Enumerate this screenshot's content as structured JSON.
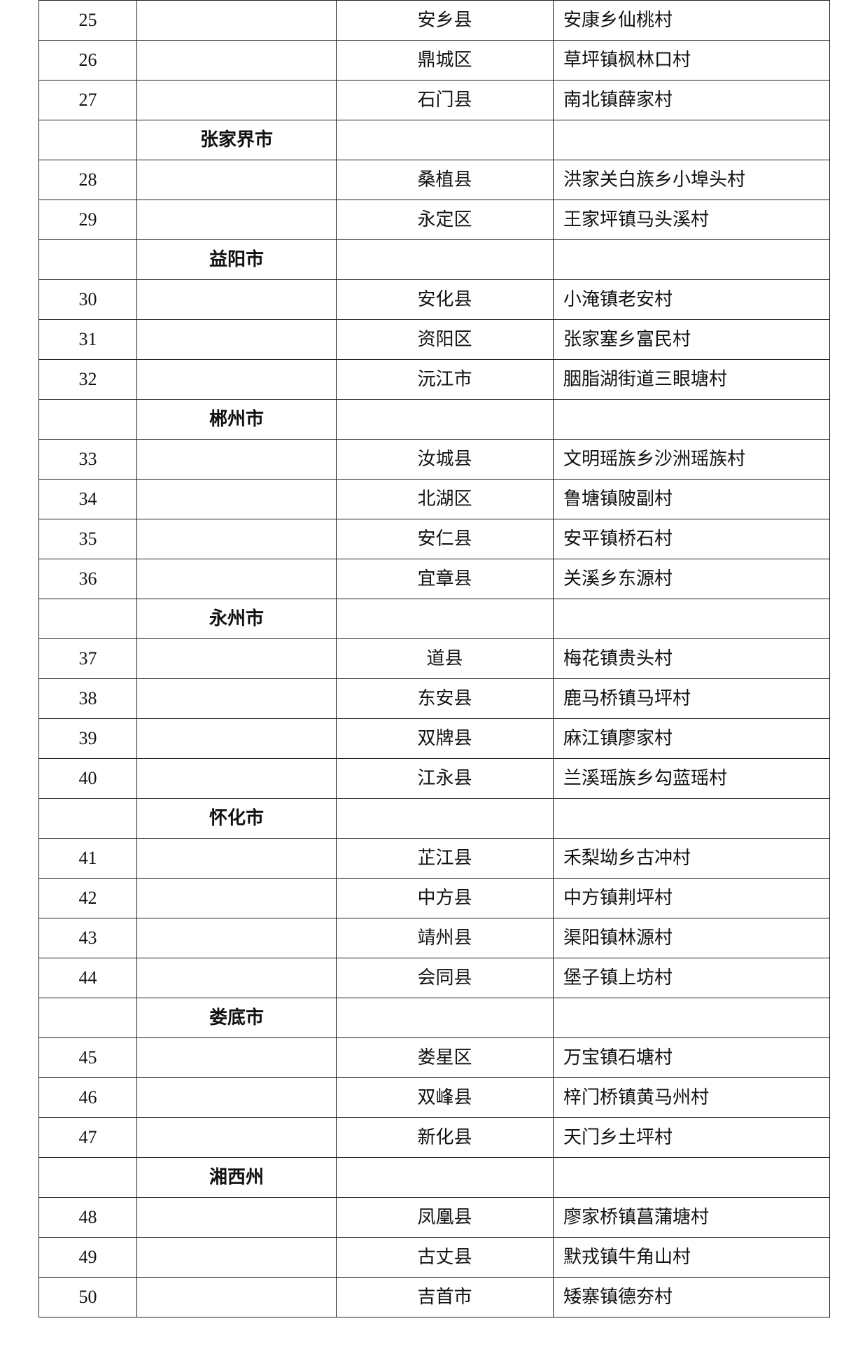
{
  "rows": [
    {
      "no": "25",
      "city": "",
      "district": "安乡县",
      "village": "安康乡仙桃村"
    },
    {
      "no": "26",
      "city": "",
      "district": "鼎城区",
      "village": "草坪镇枫林口村"
    },
    {
      "no": "27",
      "city": "",
      "district": "石门县",
      "village": "南北镇薛家村"
    },
    {
      "no": "",
      "city": "张家界市",
      "district": "",
      "village": ""
    },
    {
      "no": "28",
      "city": "",
      "district": "桑植县",
      "village": "洪家关白族乡小埠头村"
    },
    {
      "no": "29",
      "city": "",
      "district": "永定区",
      "village": "王家坪镇马头溪村"
    },
    {
      "no": "",
      "city": "益阳市",
      "district": "",
      "village": ""
    },
    {
      "no": "30",
      "city": "",
      "district": "安化县",
      "village": "小淹镇老安村"
    },
    {
      "no": "31",
      "city": "",
      "district": "资阳区",
      "village": "张家塞乡富民村"
    },
    {
      "no": "32",
      "city": "",
      "district": "沅江市",
      "village": "胭脂湖街道三眼塘村"
    },
    {
      "no": "",
      "city": "郴州市",
      "district": "",
      "village": ""
    },
    {
      "no": "33",
      "city": "",
      "district": "汝城县",
      "village": "文明瑶族乡沙洲瑶族村"
    },
    {
      "no": "34",
      "city": "",
      "district": "北湖区",
      "village": "鲁塘镇陂副村"
    },
    {
      "no": "35",
      "city": "",
      "district": "安仁县",
      "village": "安平镇桥石村"
    },
    {
      "no": "36",
      "city": "",
      "district": "宜章县",
      "village": "关溪乡东源村"
    },
    {
      "no": "",
      "city": "永州市",
      "district": "",
      "village": ""
    },
    {
      "no": "37",
      "city": "",
      "district": "道县",
      "village": "梅花镇贵头村"
    },
    {
      "no": "38",
      "city": "",
      "district": "东安县",
      "village": "鹿马桥镇马坪村"
    },
    {
      "no": "39",
      "city": "",
      "district": "双牌县",
      "village": "麻江镇廖家村"
    },
    {
      "no": "40",
      "city": "",
      "district": "江永县",
      "village": "兰溪瑶族乡勾蓝瑶村"
    },
    {
      "no": "",
      "city": "怀化市",
      "district": "",
      "village": ""
    },
    {
      "no": "41",
      "city": "",
      "district": "芷江县",
      "village": "禾梨坳乡古冲村"
    },
    {
      "no": "42",
      "city": "",
      "district": "中方县",
      "village": "中方镇荆坪村"
    },
    {
      "no": "43",
      "city": "",
      "district": "靖州县",
      "village": "渠阳镇林源村"
    },
    {
      "no": "44",
      "city": "",
      "district": "会同县",
      "village": "堡子镇上坊村"
    },
    {
      "no": "",
      "city": "娄底市",
      "district": "",
      "village": ""
    },
    {
      "no": "45",
      "city": "",
      "district": "娄星区",
      "village": "万宝镇石塘村"
    },
    {
      "no": "46",
      "city": "",
      "district": "双峰县",
      "village": "梓门桥镇黄马州村"
    },
    {
      "no": "47",
      "city": "",
      "district": "新化县",
      "village": "天门乡土坪村"
    },
    {
      "no": "",
      "city": "湘西州",
      "district": "",
      "village": ""
    },
    {
      "no": "48",
      "city": "",
      "district": "凤凰县",
      "village": "廖家桥镇菖蒲塘村"
    },
    {
      "no": "49",
      "city": "",
      "district": "古丈县",
      "village": "默戎镇牛角山村"
    },
    {
      "no": "50",
      "city": "",
      "district": "吉首市",
      "village": "矮寨镇德夯村"
    }
  ]
}
